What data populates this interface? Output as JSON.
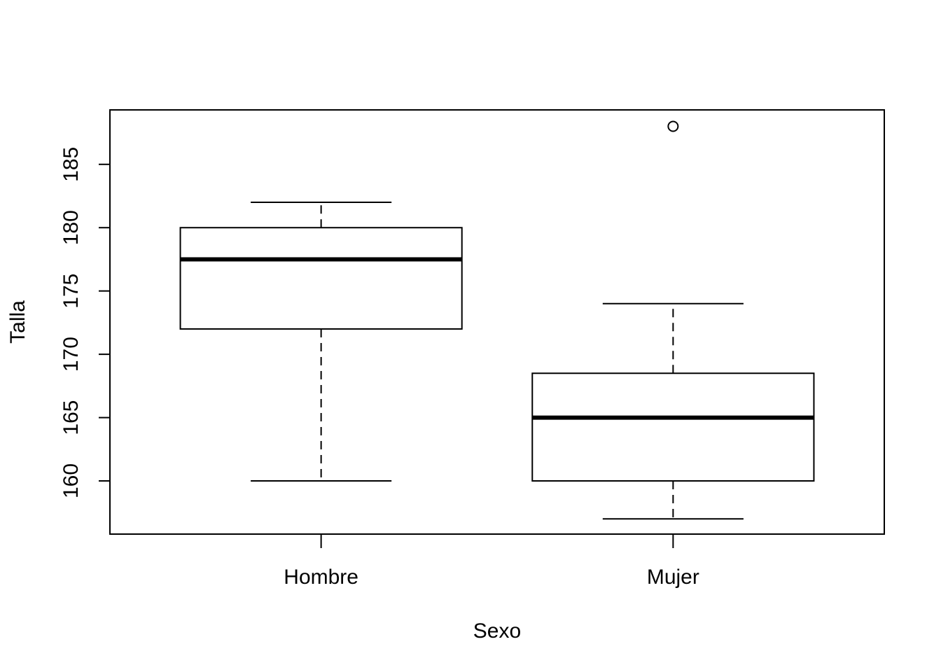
{
  "chart_data": {
    "type": "boxplot",
    "title": "",
    "xlabel": "Sexo",
    "ylabel": "Talla",
    "categories": [
      "Hombre",
      "Mujer"
    ],
    "ylim": [
      155.8,
      189.3
    ],
    "yticks": [
      160,
      165,
      170,
      175,
      180,
      185
    ],
    "grid": false,
    "legend": "none",
    "boxes": [
      {
        "name": "Hombre",
        "whisker_low": 160,
        "q1": 172,
        "median": 177.5,
        "q3": 180,
        "whisker_high": 182,
        "outliers": []
      },
      {
        "name": "Mujer",
        "whisker_low": 157,
        "q1": 160,
        "median": 165,
        "q3": 168.5,
        "whisker_high": 174,
        "outliers": [
          188
        ]
      }
    ]
  }
}
